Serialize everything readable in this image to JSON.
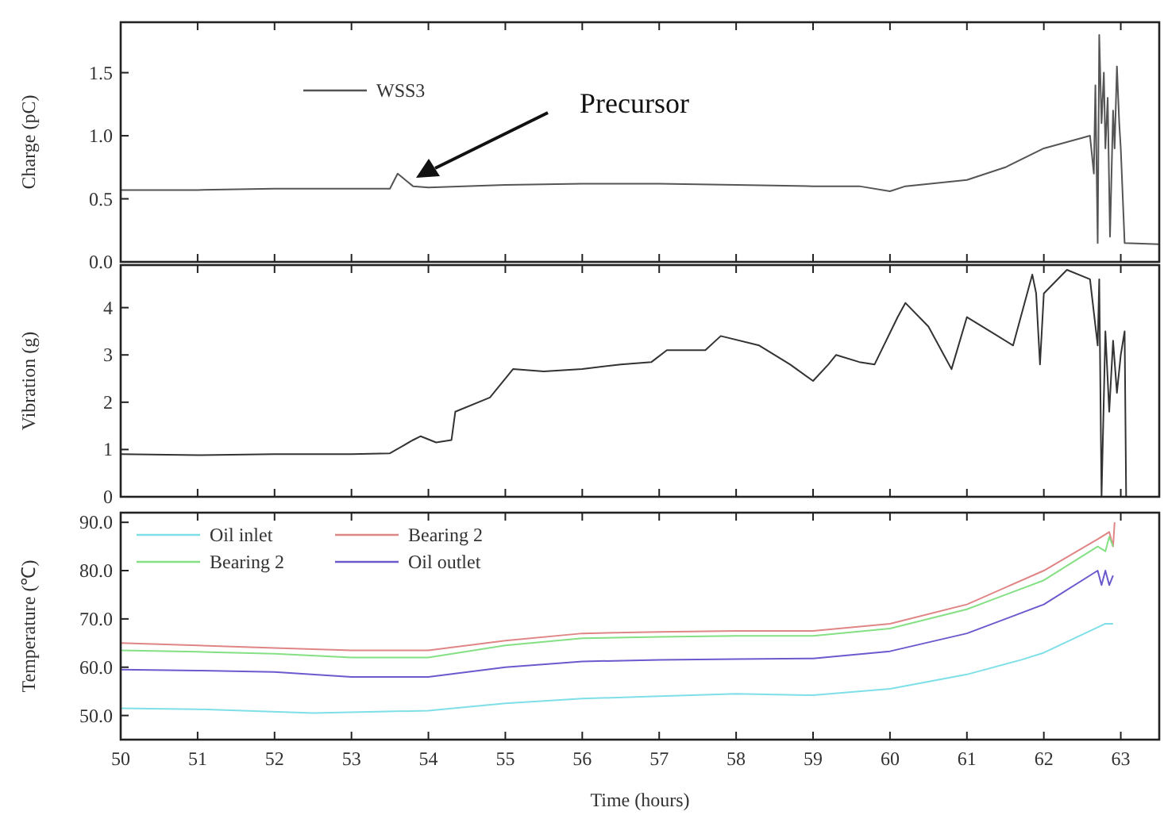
{
  "chart_data": [
    {
      "type": "line",
      "ylabel": "Charge (pC)",
      "xlim": [
        50,
        63.5
      ],
      "xticks": [
        50,
        51,
        52,
        53,
        54,
        55,
        56,
        57,
        58,
        59,
        60,
        61,
        62,
        63
      ],
      "ylim": [
        0,
        1.9
      ],
      "yticks": [
        {
          "value": 0,
          "label": "0.0"
        },
        {
          "value": 0.5,
          "label": "0.5"
        },
        {
          "value": 1,
          "label": "1.0"
        },
        {
          "value": 1.5,
          "label": "1.5"
        }
      ],
      "tick_labels": "y",
      "legend": "top left",
      "annotations": [
        "Precursor"
      ],
      "series": [
        {
          "name": "WSS3",
          "color": "#555555",
          "x": [
            50,
            51,
            52,
            53,
            53.5,
            53.6,
            53.7,
            53.8,
            54,
            55,
            56,
            57,
            58,
            59,
            59.6,
            60,
            60.2,
            61,
            61.5,
            62,
            62.3,
            62.6,
            62.65,
            62.67,
            62.7,
            62.72,
            62.75,
            62.78,
            62.8,
            62.83,
            62.86,
            62.9,
            62.92,
            62.95,
            62.98,
            63.0,
            63.05,
            63.5
          ],
          "values": [
            0.57,
            0.57,
            0.58,
            0.58,
            0.58,
            0.7,
            0.65,
            0.6,
            0.59,
            0.61,
            0.62,
            0.62,
            0.61,
            0.6,
            0.6,
            0.56,
            0.6,
            0.65,
            0.75,
            0.9,
            0.95,
            1.0,
            0.7,
            1.4,
            0.15,
            1.8,
            1.1,
            1.5,
            0.9,
            1.3,
            0.2,
            1.2,
            0.9,
            1.55,
            1.1,
            0.9,
            0.15,
            0.14
          ]
        }
      ]
    },
    {
      "type": "line",
      "ylabel": "Vibration (g)",
      "xlim": [
        50,
        63.5
      ],
      "xticks": [
        50,
        51,
        52,
        53,
        54,
        55,
        56,
        57,
        58,
        59,
        60,
        61,
        62,
        63
      ],
      "ylim": [
        0,
        4.9
      ],
      "yticks": [
        0,
        1,
        2,
        3,
        4
      ],
      "tick_labels": "y",
      "series": [
        {
          "color": "#333333",
          "x": [
            50,
            51,
            52,
            53,
            53.5,
            53.8,
            53.9,
            54.1,
            54.3,
            54.35,
            54.8,
            55.1,
            55.5,
            56,
            56.5,
            56.9,
            57.1,
            57.6,
            57.8,
            58.3,
            58.7,
            59,
            59.2,
            59.3,
            59.6,
            59.8,
            60.1,
            60.2,
            60.5,
            60.7,
            60.8,
            61,
            61.3,
            61.6,
            61.8,
            61.85,
            61.9,
            61.95,
            62,
            62.3,
            62.6,
            62.7,
            62.72,
            62.75,
            62.8,
            62.85,
            62.9,
            62.95,
            63,
            63.05,
            63.07
          ],
          "values": [
            0.9,
            0.88,
            0.9,
            0.9,
            0.92,
            1.2,
            1.28,
            1.15,
            1.2,
            1.8,
            2.1,
            2.7,
            2.65,
            2.7,
            2.8,
            2.85,
            3.1,
            3.1,
            3.4,
            3.2,
            2.8,
            2.45,
            2.8,
            3.0,
            2.85,
            2.8,
            3.8,
            4.1,
            3.6,
            3.0,
            2.7,
            3.8,
            3.5,
            3.2,
            4.4,
            4.7,
            4.3,
            2.8,
            4.3,
            4.8,
            4.6,
            3.2,
            4.6,
            0,
            3.5,
            1.8,
            3.3,
            2.2,
            3.0,
            3.5,
            0
          ]
        }
      ]
    },
    {
      "type": "line",
      "xlabel": "Time (hours)",
      "ylabel": "Temperature (℃)",
      "xlim": [
        50,
        63.5
      ],
      "xticks": [
        50,
        51,
        52,
        53,
        54,
        55,
        56,
        57,
        58,
        59,
        60,
        61,
        62,
        63
      ],
      "ylim": [
        45,
        92
      ],
      "yticks": [
        {
          "value": 50,
          "label": "50.0"
        },
        {
          "value": 60,
          "label": "60.0"
        },
        {
          "value": 70,
          "label": "70.0"
        },
        {
          "value": 80,
          "label": "80.0"
        },
        {
          "value": 90,
          "label": "90.0"
        }
      ],
      "legend": "top left",
      "series": [
        {
          "name": "Oil inlet",
          "color": "#7fdfe8",
          "x": [
            50,
            51,
            52.5,
            54,
            55,
            56,
            57,
            58,
            59,
            60,
            61,
            61.7,
            62,
            62.8,
            62.9
          ],
          "values": [
            51.5,
            51.3,
            50.5,
            51,
            52.5,
            53.5,
            54,
            54.5,
            54.2,
            55.5,
            58.5,
            61.5,
            63,
            69,
            69
          ]
        },
        {
          "name": "Bearing 2",
          "color": "#e08585",
          "x": [
            50,
            51,
            52,
            53,
            54,
            55,
            56,
            57,
            58,
            59,
            60,
            61,
            62,
            62.7,
            62.85,
            62.9,
            62.92
          ],
          "values": [
            65,
            64.5,
            64,
            63.5,
            63.5,
            65.5,
            67,
            67.3,
            67.5,
            67.5,
            69,
            73,
            80,
            86.5,
            88,
            85,
            90
          ]
        },
        {
          "name": "Bearing 2",
          "color": "#85e085",
          "x": [
            50,
            51,
            52,
            53,
            54,
            55,
            56,
            57,
            58,
            59,
            60,
            61,
            62,
            62.7,
            62.8,
            62.85,
            62.9
          ],
          "values": [
            63.5,
            63.2,
            62.8,
            62,
            62,
            64.5,
            66,
            66.3,
            66.5,
            66.5,
            68,
            72,
            78,
            85,
            84,
            87,
            85
          ]
        },
        {
          "name": "Oil outlet",
          "color": "#6a5acd",
          "x": [
            50,
            51,
            52,
            53,
            54,
            55,
            56,
            57,
            58,
            59,
            60,
            61,
            62,
            62.7,
            62.75,
            62.8,
            62.85,
            62.9
          ],
          "values": [
            59.5,
            59.3,
            59,
            58,
            58,
            60,
            61.2,
            61.5,
            61.7,
            61.8,
            63.3,
            67,
            73,
            80,
            77,
            80,
            77,
            79
          ]
        }
      ]
    }
  ]
}
